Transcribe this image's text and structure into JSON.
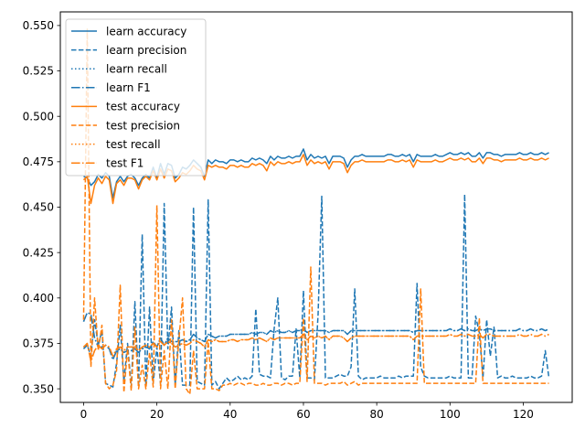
{
  "chart_data": {
    "type": "line",
    "title": "",
    "xlabel": "",
    "ylabel": "",
    "xlim": [
      -6.35,
      133.35
    ],
    "ylim": [
      0.3425,
      0.5575
    ],
    "x_ticks": [
      0,
      20,
      40,
      60,
      80,
      100,
      120
    ],
    "y_ticks": [
      0.35,
      0.375,
      0.4,
      0.425,
      0.45,
      0.475,
      0.5,
      0.525,
      0.55
    ],
    "y_tick_labels": [
      "0.350",
      "0.375",
      "0.400",
      "0.425",
      "0.450",
      "0.475",
      "0.500",
      "0.525",
      "0.550"
    ],
    "grid": false,
    "legend_position": "upper-left",
    "x_start": 0,
    "series": [
      {
        "name": "learn accuracy",
        "color": "#1f77b4",
        "dash": "solid",
        "values": [
          0.467,
          0.466,
          0.462,
          0.464,
          0.468,
          0.466,
          0.469,
          0.467,
          0.455,
          0.464,
          0.467,
          0.464,
          0.467,
          0.468,
          0.466,
          0.462,
          0.466,
          0.468,
          0.466,
          0.472,
          0.466,
          0.474,
          0.468,
          0.474,
          0.473,
          0.466,
          0.468,
          0.472,
          0.471,
          0.473,
          0.476,
          0.474,
          0.472,
          0.467,
          0.476,
          0.474,
          0.476,
          0.475,
          0.475,
          0.474,
          0.476,
          0.476,
          0.475,
          0.476,
          0.475,
          0.475,
          0.477,
          0.476,
          0.477,
          0.476,
          0.474,
          0.478,
          0.476,
          0.478,
          0.477,
          0.477,
          0.478,
          0.477,
          0.478,
          0.478,
          0.482,
          0.476,
          0.479,
          0.477,
          0.478,
          0.477,
          0.478,
          0.474,
          0.478,
          0.478,
          0.478,
          0.477,
          0.472,
          0.476,
          0.478,
          0.478,
          0.479,
          0.478,
          0.478,
          0.478,
          0.478,
          0.478,
          0.478,
          0.479,
          0.479,
          0.478,
          0.478,
          0.479,
          0.478,
          0.479,
          0.475,
          0.479,
          0.478,
          0.478,
          0.478,
          0.478,
          0.479,
          0.478,
          0.478,
          0.479,
          0.48,
          0.479,
          0.479,
          0.48,
          0.479,
          0.48,
          0.478,
          0.478,
          0.48,
          0.477,
          0.48,
          0.48,
          0.479,
          0.479,
          0.478,
          0.479,
          0.479,
          0.479,
          0.479,
          0.48,
          0.479,
          0.479,
          0.48,
          0.479,
          0.479,
          0.48,
          0.479,
          0.48
        ]
      },
      {
        "name": "learn precision",
        "color": "#1f77b4",
        "dash": "dashed",
        "values": [
          0.372,
          0.374,
          0.368,
          0.388,
          0.374,
          0.382,
          0.353,
          0.352,
          0.351,
          0.364,
          0.385,
          0.354,
          0.375,
          0.351,
          0.398,
          0.351,
          0.435,
          0.352,
          0.395,
          0.353,
          0.373,
          0.353,
          0.452,
          0.372,
          0.395,
          0.352,
          0.382,
          0.352,
          0.352,
          0.352,
          0.45,
          0.354,
          0.353,
          0.352,
          0.454,
          0.352,
          0.354,
          0.35,
          0.353,
          0.356,
          0.354,
          0.355,
          0.357,
          0.355,
          0.356,
          0.355,
          0.357,
          0.394,
          0.358,
          0.357,
          0.357,
          0.356,
          0.383,
          0.4,
          0.356,
          0.355,
          0.357,
          0.357,
          0.383,
          0.356,
          0.404,
          0.356,
          0.356,
          0.355,
          0.391,
          0.456,
          0.356,
          0.356,
          0.356,
          0.357,
          0.358,
          0.357,
          0.357,
          0.362,
          0.405,
          0.357,
          0.355,
          0.356,
          0.356,
          0.356,
          0.356,
          0.357,
          0.356,
          0.356,
          0.356,
          0.356,
          0.357,
          0.356,
          0.357,
          0.357,
          0.357,
          0.408,
          0.362,
          0.357,
          0.356,
          0.356,
          0.356,
          0.356,
          0.356,
          0.356,
          0.357,
          0.356,
          0.356,
          0.356,
          0.457,
          0.356,
          0.356,
          0.39,
          0.381,
          0.356,
          0.388,
          0.368,
          0.384,
          0.356,
          0.357,
          0.356,
          0.356,
          0.357,
          0.356,
          0.356,
          0.356,
          0.356,
          0.357,
          0.356,
          0.356,
          0.357,
          0.371,
          0.356
        ]
      },
      {
        "name": "learn recall",
        "color": "#1f77b4",
        "dash": "dotted",
        "values": [
          0.387,
          0.392,
          0.391,
          0.378,
          0.373,
          0.373,
          0.374,
          0.372,
          0.366,
          0.371,
          0.372,
          0.37,
          0.371,
          0.371,
          0.372,
          0.37,
          0.372,
          0.373,
          0.372,
          0.376,
          0.373,
          0.378,
          0.374,
          0.378,
          0.376,
          0.376,
          0.376,
          0.377,
          0.376,
          0.377,
          0.38,
          0.378,
          0.377,
          0.376,
          0.38,
          0.379,
          0.378,
          0.379,
          0.379,
          0.379,
          0.38,
          0.38,
          0.38,
          0.38,
          0.38,
          0.38,
          0.381,
          0.38,
          0.381,
          0.381,
          0.38,
          0.382,
          0.381,
          0.382,
          0.381,
          0.381,
          0.382,
          0.381,
          0.382,
          0.382,
          0.383,
          0.381,
          0.382,
          0.382,
          0.382,
          0.382,
          0.382,
          0.381,
          0.382,
          0.382,
          0.382,
          0.382,
          0.38,
          0.382,
          0.382,
          0.382,
          0.382,
          0.382,
          0.382,
          0.382,
          0.382,
          0.382,
          0.382,
          0.382,
          0.382,
          0.382,
          0.382,
          0.382,
          0.382,
          0.382,
          0.381,
          0.382,
          0.382,
          0.382,
          0.382,
          0.382,
          0.382,
          0.382,
          0.382,
          0.382,
          0.383,
          0.382,
          0.382,
          0.383,
          0.382,
          0.383,
          0.382,
          0.382,
          0.383,
          0.382,
          0.383,
          0.383,
          0.382,
          0.382,
          0.382,
          0.382,
          0.382,
          0.382,
          0.382,
          0.383,
          0.382,
          0.382,
          0.383,
          0.382,
          0.382,
          0.383,
          0.382,
          0.383
        ]
      },
      {
        "name": "learn F1",
        "color": "#1f77b4",
        "dash": "dashdot",
        "values": [
          0.387,
          0.392,
          0.391,
          0.378,
          0.373,
          0.373,
          0.374,
          0.372,
          0.366,
          0.371,
          0.372,
          0.37,
          0.371,
          0.371,
          0.372,
          0.37,
          0.372,
          0.373,
          0.372,
          0.376,
          0.373,
          0.378,
          0.374,
          0.378,
          0.376,
          0.376,
          0.376,
          0.377,
          0.376,
          0.377,
          0.38,
          0.378,
          0.377,
          0.376,
          0.38,
          0.379,
          0.378,
          0.379,
          0.379,
          0.379,
          0.38,
          0.38,
          0.38,
          0.38,
          0.38,
          0.38,
          0.381,
          0.38,
          0.381,
          0.381,
          0.38,
          0.382,
          0.381,
          0.382,
          0.381,
          0.381,
          0.382,
          0.381,
          0.382,
          0.382,
          0.383,
          0.381,
          0.382,
          0.382,
          0.382,
          0.382,
          0.382,
          0.381,
          0.382,
          0.382,
          0.382,
          0.382,
          0.38,
          0.382,
          0.382,
          0.382,
          0.382,
          0.382,
          0.382,
          0.382,
          0.382,
          0.382,
          0.382,
          0.382,
          0.382,
          0.382,
          0.382,
          0.382,
          0.382,
          0.382,
          0.381,
          0.382,
          0.382,
          0.382,
          0.382,
          0.382,
          0.382,
          0.382,
          0.382,
          0.382,
          0.383,
          0.382,
          0.382,
          0.383,
          0.382,
          0.383,
          0.382,
          0.382,
          0.383,
          0.382,
          0.383,
          0.383,
          0.382,
          0.382,
          0.382,
          0.382,
          0.382,
          0.382,
          0.382,
          0.383,
          0.382,
          0.382,
          0.383,
          0.382,
          0.382,
          0.383,
          0.382,
          0.383
        ]
      },
      {
        "name": "test accuracy",
        "color": "#ff7f0e",
        "dash": "solid",
        "values": [
          0.465,
          0.467,
          0.452,
          0.462,
          0.466,
          0.463,
          0.467,
          0.465,
          0.452,
          0.463,
          0.465,
          0.462,
          0.466,
          0.466,
          0.465,
          0.46,
          0.465,
          0.467,
          0.465,
          0.47,
          0.465,
          0.471,
          0.466,
          0.471,
          0.47,
          0.464,
          0.466,
          0.469,
          0.468,
          0.47,
          0.473,
          0.471,
          0.47,
          0.465,
          0.473,
          0.472,
          0.473,
          0.472,
          0.472,
          0.471,
          0.473,
          0.473,
          0.472,
          0.473,
          0.472,
          0.472,
          0.474,
          0.473,
          0.474,
          0.473,
          0.47,
          0.475,
          0.473,
          0.475,
          0.474,
          0.474,
          0.475,
          0.474,
          0.475,
          0.475,
          0.479,
          0.473,
          0.476,
          0.474,
          0.475,
          0.474,
          0.475,
          0.471,
          0.475,
          0.475,
          0.475,
          0.474,
          0.469,
          0.473,
          0.475,
          0.475,
          0.476,
          0.475,
          0.475,
          0.475,
          0.475,
          0.475,
          0.475,
          0.476,
          0.476,
          0.475,
          0.475,
          0.476,
          0.475,
          0.476,
          0.472,
          0.476,
          0.475,
          0.475,
          0.475,
          0.475,
          0.476,
          0.475,
          0.475,
          0.476,
          0.477,
          0.476,
          0.476,
          0.477,
          0.476,
          0.477,
          0.475,
          0.475,
          0.477,
          0.474,
          0.477,
          0.477,
          0.476,
          0.476,
          0.475,
          0.476,
          0.476,
          0.476,
          0.476,
          0.477,
          0.476,
          0.476,
          0.477,
          0.476,
          0.476,
          0.477,
          0.476,
          0.477
        ]
      },
      {
        "name": "test precision",
        "color": "#ff7f0e",
        "dash": "dashed",
        "values": [
          0.388,
          0.548,
          0.362,
          0.4,
          0.371,
          0.385,
          0.353,
          0.35,
          0.352,
          0.36,
          0.407,
          0.348,
          0.372,
          0.349,
          0.384,
          0.35,
          0.363,
          0.35,
          0.37,
          0.351,
          0.451,
          0.35,
          0.371,
          0.35,
          0.388,
          0.35,
          0.377,
          0.4,
          0.35,
          0.347,
          0.371,
          0.35,
          0.35,
          0.35,
          0.376,
          0.35,
          0.35,
          0.349,
          0.352,
          0.352,
          0.353,
          0.352,
          0.353,
          0.353,
          0.352,
          0.353,
          0.353,
          0.352,
          0.352,
          0.353,
          0.352,
          0.352,
          0.353,
          0.353,
          0.352,
          0.353,
          0.353,
          0.352,
          0.353,
          0.353,
          0.389,
          0.354,
          0.417,
          0.353,
          0.353,
          0.353,
          0.352,
          0.353,
          0.353,
          0.353,
          0.353,
          0.354,
          0.352,
          0.353,
          0.354,
          0.352,
          0.353,
          0.353,
          0.353,
          0.353,
          0.353,
          0.353,
          0.353,
          0.353,
          0.353,
          0.353,
          0.353,
          0.353,
          0.353,
          0.353,
          0.353,
          0.353,
          0.405,
          0.353,
          0.353,
          0.353,
          0.353,
          0.353,
          0.353,
          0.353,
          0.353,
          0.353,
          0.353,
          0.353,
          0.353,
          0.353,
          0.353,
          0.353,
          0.389,
          0.353,
          0.353,
          0.353,
          0.353,
          0.353,
          0.353,
          0.353,
          0.353,
          0.353,
          0.353,
          0.353,
          0.353,
          0.353,
          0.353,
          0.353,
          0.353,
          0.353,
          0.353,
          0.353
        ]
      },
      {
        "name": "test recall",
        "color": "#ff7f0e",
        "dash": "dotted",
        "values": [
          0.373,
          0.375,
          0.365,
          0.371,
          0.374,
          0.372,
          0.374,
          0.373,
          0.368,
          0.372,
          0.373,
          0.371,
          0.373,
          0.373,
          0.373,
          0.371,
          0.373,
          0.374,
          0.373,
          0.375,
          0.373,
          0.376,
          0.374,
          0.376,
          0.375,
          0.373,
          0.374,
          0.375,
          0.374,
          0.375,
          0.377,
          0.376,
          0.375,
          0.373,
          0.377,
          0.376,
          0.377,
          0.376,
          0.376,
          0.376,
          0.377,
          0.377,
          0.376,
          0.377,
          0.377,
          0.377,
          0.378,
          0.377,
          0.378,
          0.377,
          0.376,
          0.378,
          0.377,
          0.378,
          0.378,
          0.378,
          0.378,
          0.378,
          0.378,
          0.378,
          0.38,
          0.377,
          0.379,
          0.378,
          0.379,
          0.378,
          0.379,
          0.377,
          0.379,
          0.379,
          0.379,
          0.378,
          0.376,
          0.378,
          0.379,
          0.379,
          0.379,
          0.379,
          0.379,
          0.379,
          0.379,
          0.379,
          0.379,
          0.379,
          0.379,
          0.379,
          0.379,
          0.379,
          0.379,
          0.379,
          0.377,
          0.379,
          0.379,
          0.379,
          0.379,
          0.379,
          0.379,
          0.379,
          0.379,
          0.379,
          0.38,
          0.379,
          0.379,
          0.38,
          0.379,
          0.38,
          0.379,
          0.379,
          0.38,
          0.378,
          0.38,
          0.38,
          0.379,
          0.379,
          0.379,
          0.379,
          0.379,
          0.379,
          0.379,
          0.38,
          0.379,
          0.379,
          0.38,
          0.379,
          0.379,
          0.38,
          0.379,
          0.38
        ]
      },
      {
        "name": "test F1",
        "color": "#ff7f0e",
        "dash": "dashdot",
        "values": [
          0.373,
          0.375,
          0.365,
          0.371,
          0.374,
          0.372,
          0.374,
          0.373,
          0.368,
          0.372,
          0.373,
          0.371,
          0.373,
          0.373,
          0.373,
          0.371,
          0.373,
          0.374,
          0.373,
          0.375,
          0.373,
          0.376,
          0.374,
          0.376,
          0.375,
          0.373,
          0.374,
          0.375,
          0.374,
          0.375,
          0.377,
          0.376,
          0.375,
          0.373,
          0.377,
          0.376,
          0.377,
          0.376,
          0.376,
          0.376,
          0.377,
          0.377,
          0.376,
          0.377,
          0.377,
          0.377,
          0.378,
          0.377,
          0.378,
          0.377,
          0.376,
          0.378,
          0.377,
          0.378,
          0.378,
          0.378,
          0.378,
          0.378,
          0.378,
          0.378,
          0.38,
          0.377,
          0.379,
          0.378,
          0.379,
          0.378,
          0.379,
          0.377,
          0.379,
          0.379,
          0.379,
          0.378,
          0.376,
          0.378,
          0.379,
          0.379,
          0.379,
          0.379,
          0.379,
          0.379,
          0.379,
          0.379,
          0.379,
          0.379,
          0.379,
          0.379,
          0.379,
          0.379,
          0.379,
          0.379,
          0.377,
          0.379,
          0.379,
          0.379,
          0.379,
          0.379,
          0.379,
          0.379,
          0.379,
          0.379,
          0.38,
          0.379,
          0.379,
          0.38,
          0.379,
          0.38,
          0.379,
          0.379,
          0.38,
          0.378,
          0.38,
          0.38,
          0.379,
          0.379,
          0.379,
          0.379,
          0.379,
          0.379,
          0.379,
          0.38,
          0.379,
          0.379,
          0.38,
          0.379,
          0.379,
          0.38,
          0.379,
          0.38
        ]
      }
    ]
  }
}
